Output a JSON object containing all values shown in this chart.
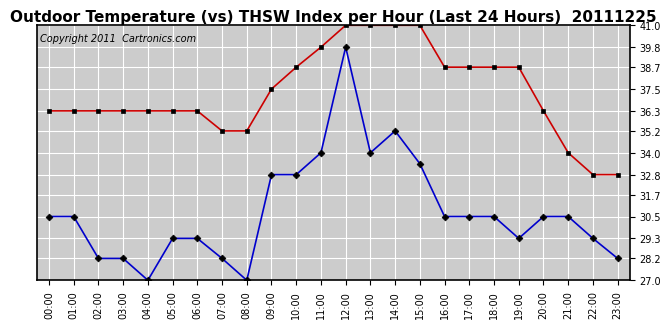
{
  "title": "Outdoor Temperature (vs) THSW Index per Hour (Last 24 Hours)  20111225",
  "copyright": "Copyright 2011  Cartronics.com",
  "hours": [
    "00:00",
    "01:00",
    "02:00",
    "03:00",
    "04:00",
    "05:00",
    "06:00",
    "07:00",
    "08:00",
    "09:00",
    "10:00",
    "11:00",
    "12:00",
    "13:00",
    "14:00",
    "15:00",
    "16:00",
    "17:00",
    "18:00",
    "19:00",
    "20:00",
    "21:00",
    "22:00",
    "23:00"
  ],
  "thsw": [
    36.3,
    36.3,
    36.3,
    36.3,
    36.3,
    36.3,
    36.3,
    35.2,
    35.2,
    37.5,
    38.7,
    39.8,
    41.0,
    41.0,
    41.0,
    41.0,
    38.7,
    38.7,
    38.7,
    38.7,
    36.3,
    34.0,
    32.8,
    32.8
  ],
  "outdoor_temp": [
    30.5,
    30.5,
    28.2,
    28.2,
    27.0,
    29.3,
    29.3,
    28.2,
    27.0,
    32.8,
    32.8,
    34.0,
    39.8,
    34.0,
    35.2,
    33.4,
    30.5,
    30.5,
    30.5,
    29.3,
    30.5,
    30.5,
    29.3,
    28.2
  ],
  "ylim": [
    27.0,
    41.0
  ],
  "yticks": [
    27.0,
    28.2,
    29.3,
    30.5,
    31.7,
    32.8,
    34.0,
    35.2,
    36.3,
    37.5,
    38.7,
    39.8,
    41.0
  ],
  "thsw_color": "#cc0000",
  "temp_color": "#0000cc",
  "fig_bg_color": "#ffffff",
  "plot_bg_color": "#cccccc",
  "grid_color": "#ffffff",
  "title_fontsize": 11,
  "copyright_fontsize": 7,
  "tick_fontsize": 7
}
